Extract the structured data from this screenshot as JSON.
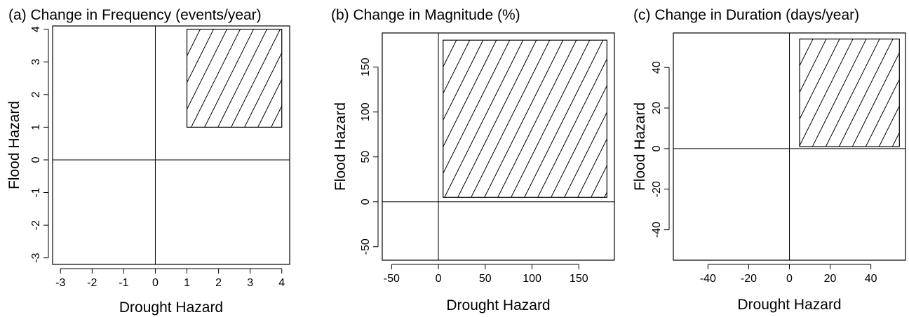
{
  "chart_data": [
    {
      "type": "area",
      "title": "(a) Change in Frequency (events/year)",
      "xlabel": "Drought Hazard",
      "ylabel": "Flood Hazard",
      "xlim": [
        -3.25,
        4.25
      ],
      "ylim": [
        -3.2,
        4.1
      ],
      "xticks": [
        -3,
        -2,
        -1,
        0,
        1,
        2,
        3,
        4
      ],
      "xtick_labels": [
        "-3",
        "-2",
        "-1",
        "0",
        "1",
        "2",
        "3",
        "4"
      ],
      "yticks": [
        -3,
        -2,
        -1,
        0,
        1,
        2,
        3,
        4
      ],
      "ytick_labels": [
        "-3",
        "-2",
        "-1",
        "0",
        "1",
        "2",
        "3",
        "4"
      ],
      "reference_lines": {
        "x": 0,
        "y": 0
      },
      "region": {
        "x": [
          1,
          4
        ],
        "y": [
          1,
          4
        ],
        "fill": "hatched"
      },
      "grid": false
    },
    {
      "type": "area",
      "title": "(b) Change in Magnitude (%)",
      "xlabel": "Drought Hazard",
      "ylabel": "Flood Hazard",
      "xlim": [
        -60,
        188
      ],
      "ylim": [
        -65,
        188
      ],
      "xticks": [
        -50,
        0,
        50,
        100,
        150
      ],
      "xtick_labels": [
        "-50",
        "0",
        "50",
        "100",
        "150"
      ],
      "yticks": [
        -50,
        0,
        50,
        100,
        150
      ],
      "ytick_labels": [
        "-50",
        "0",
        "50",
        "100",
        "150"
      ],
      "reference_lines": {
        "x": 0,
        "y": 0
      },
      "region": {
        "x": [
          5,
          180
        ],
        "y": [
          5,
          180
        ],
        "fill": "hatched"
      },
      "grid": false
    },
    {
      "type": "area",
      "title": "(c) Change in Duration (days/year)",
      "xlabel": "Drought Hazard",
      "ylabel": "Flood Hazard",
      "xlim": [
        -57,
        57
      ],
      "ylim": [
        -55,
        57
      ],
      "xticks": [
        -40,
        -20,
        0,
        20,
        40
      ],
      "xtick_labels": [
        "-40",
        "-20",
        "0",
        "20",
        "40"
      ],
      "yticks": [
        -40,
        -20,
        0,
        20,
        40
      ],
      "ytick_labels": [
        "-40",
        "-20",
        "0",
        "20",
        "40"
      ],
      "reference_lines": {
        "x": 0,
        "y": 0
      },
      "region": {
        "x": [
          5,
          54
        ],
        "y": [
          1,
          54
        ],
        "fill": "hatched"
      },
      "grid": false
    }
  ]
}
